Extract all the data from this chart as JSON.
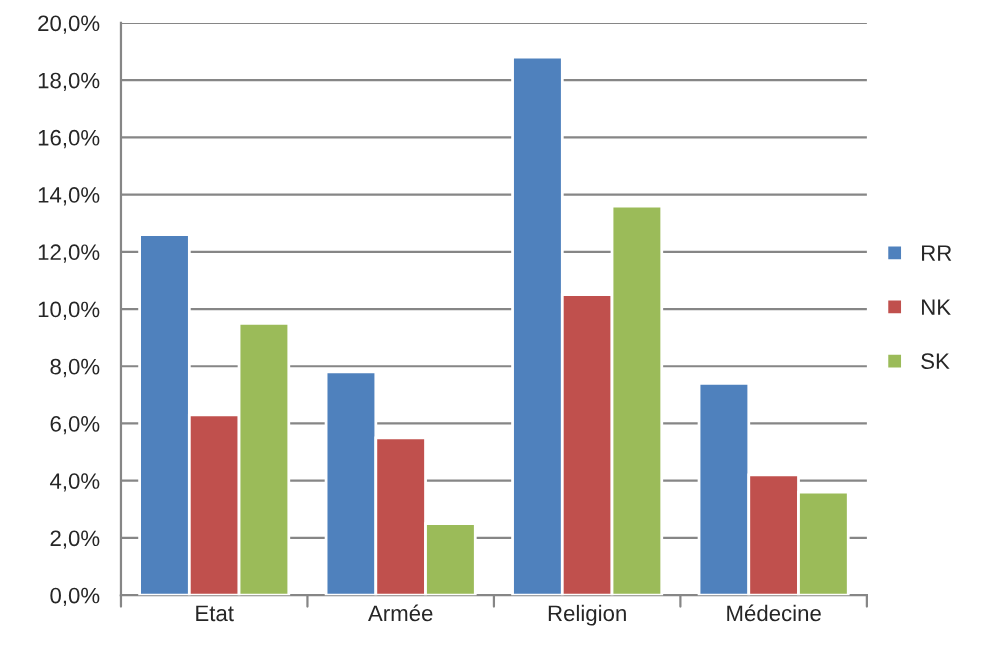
{
  "chart_data": {
    "type": "bar",
    "categories": [
      "Etat",
      "Armée",
      "Religion",
      "Médecine"
    ],
    "series": [
      {
        "name": "RR",
        "color": "#4f81bd",
        "values": [
          12.6,
          7.8,
          18.8,
          7.4
        ]
      },
      {
        "name": "NK",
        "color": "#c0504d",
        "values": [
          6.3,
          5.5,
          10.5,
          4.2
        ]
      },
      {
        "name": "SK",
        "color": "#9bbb59",
        "values": [
          9.5,
          2.5,
          13.6,
          3.6
        ]
      }
    ],
    "ylim": [
      0,
      20
    ],
    "yticks": [
      {
        "value": 0,
        "label": "0,0%"
      },
      {
        "value": 2,
        "label": "2,0%"
      },
      {
        "value": 4,
        "label": "4,0%"
      },
      {
        "value": 6,
        "label": "6,0%"
      },
      {
        "value": 8,
        "label": "8,0%"
      },
      {
        "value": 10,
        "label": "10,0%"
      },
      {
        "value": 12,
        "label": "12,0%"
      },
      {
        "value": 14,
        "label": "14,0%"
      },
      {
        "value": 16,
        "label": "16,0%"
      },
      {
        "value": 18,
        "label": "18,0%"
      },
      {
        "value": 20,
        "label": "20,0%"
      }
    ],
    "grid": "y",
    "legend": "right"
  }
}
